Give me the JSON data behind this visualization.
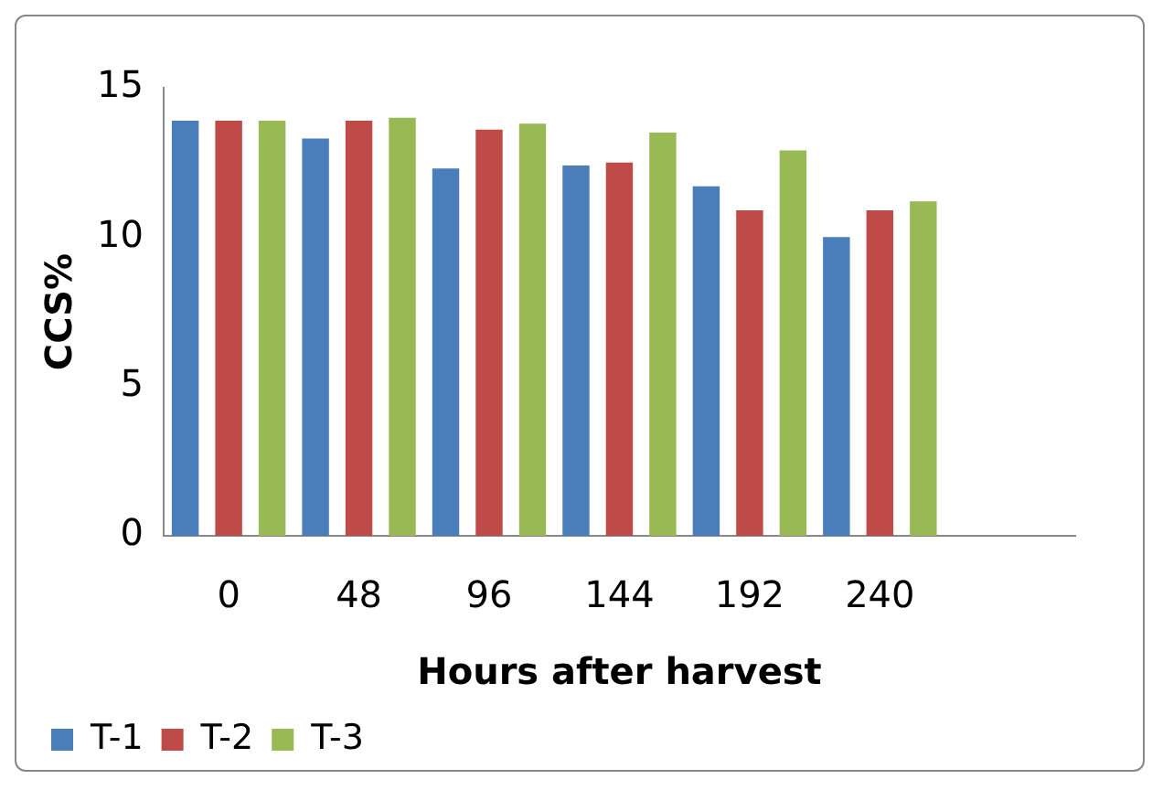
{
  "chart_data": {
    "type": "bar",
    "xlabel": "Hours after harvest",
    "ylabel": "CCS%",
    "categories": [
      "0",
      "48",
      "96",
      "144",
      "192",
      "240",
      null
    ],
    "series": [
      {
        "name": "T-1",
        "color": "#4a7ebb",
        "values": [
          13.9,
          13.3,
          12.3,
          12.4,
          11.7,
          10.0,
          null
        ]
      },
      {
        "name": "T-2",
        "color": "#be4b48",
        "values": [
          13.9,
          13.9,
          13.6,
          12.5,
          10.9,
          10.9,
          null
        ]
      },
      {
        "name": "T-3",
        "color": "#98b954",
        "values": [
          13.9,
          14.0,
          13.8,
          13.5,
          12.9,
          11.2,
          null
        ]
      }
    ],
    "ylim": [
      0,
      15
    ],
    "yticks": [
      0,
      5,
      10,
      15
    ],
    "grid": false,
    "legend": "bottom left"
  }
}
